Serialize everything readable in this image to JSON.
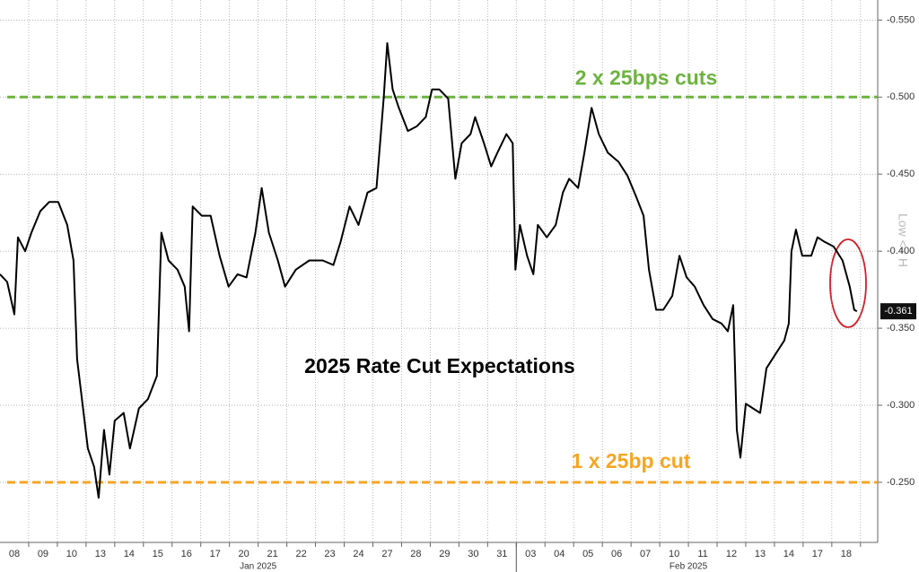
{
  "chart_data": {
    "type": "line",
    "title": "2025 Rate Cut Expectations",
    "axis_label": "Low <= H",
    "y_inverted": true,
    "ylim": [
      -0.563,
      -0.211
    ],
    "yticks": [
      {
        "value": -0.55,
        "label": "-0.550"
      },
      {
        "value": -0.5,
        "label": "-0.500"
      },
      {
        "value": -0.45,
        "label": "-0.450"
      },
      {
        "value": -0.4,
        "label": "-0.400"
      },
      {
        "value": -0.35,
        "label": "-0.350"
      },
      {
        "value": -0.3,
        "label": "-0.300"
      },
      {
        "value": -0.25,
        "label": "-0.250"
      }
    ],
    "xlim": [
      0,
      30.6
    ],
    "xticks": [
      {
        "value": 0.5,
        "label": "08"
      },
      {
        "value": 1.5,
        "label": "09"
      },
      {
        "value": 2.5,
        "label": "10"
      },
      {
        "value": 3.5,
        "label": "13"
      },
      {
        "value": 4.5,
        "label": "14"
      },
      {
        "value": 5.5,
        "label": "15"
      },
      {
        "value": 6.5,
        "label": "16"
      },
      {
        "value": 7.5,
        "label": "17"
      },
      {
        "value": 8.5,
        "label": "20"
      },
      {
        "value": 9.5,
        "label": "21"
      },
      {
        "value": 10.5,
        "label": "22"
      },
      {
        "value": 11.5,
        "label": "23"
      },
      {
        "value": 12.5,
        "label": "24"
      },
      {
        "value": 13.5,
        "label": "27"
      },
      {
        "value": 14.5,
        "label": "28"
      },
      {
        "value": 15.5,
        "label": "29"
      },
      {
        "value": 16.5,
        "label": "30"
      },
      {
        "value": 17.5,
        "label": "31"
      },
      {
        "value": 18.5,
        "label": "03"
      },
      {
        "value": 19.5,
        "label": "04"
      },
      {
        "value": 20.5,
        "label": "05"
      },
      {
        "value": 21.5,
        "label": "06"
      },
      {
        "value": 22.5,
        "label": "07"
      },
      {
        "value": 23.5,
        "label": "10"
      },
      {
        "value": 24.5,
        "label": "11"
      },
      {
        "value": 25.5,
        "label": "12"
      },
      {
        "value": 26.5,
        "label": "13"
      },
      {
        "value": 27.5,
        "label": "14"
      },
      {
        "value": 28.5,
        "label": "17"
      },
      {
        "value": 29.5,
        "label": "18"
      }
    ],
    "month_labels": [
      {
        "value": 9,
        "label": "Jan 2025"
      },
      {
        "value": 24,
        "label": "Feb 2025"
      }
    ],
    "month_breaks": [
      18
    ],
    "grid": true,
    "reference_lines": [
      {
        "value": -0.5,
        "label": "2 x 25bps cuts",
        "color": "#6db33f"
      },
      {
        "value": -0.25,
        "label": "1 x 25bp cut",
        "color": "#f5a623"
      }
    ],
    "last_value": {
      "value": -0.361,
      "label": "-0.361"
    },
    "series": [
      {
        "color": "#000000",
        "x": [
          0,
          0.25,
          0.5,
          0.625,
          0.875,
          1.094,
          1.406,
          1.719,
          2.031,
          2.344,
          2.563,
          2.688,
          2.875,
          3.063,
          3.281,
          3.438,
          3.625,
          3.813,
          4.0,
          4.313,
          4.531,
          4.844,
          5.156,
          5.469,
          5.625,
          5.875,
          6.188,
          6.438,
          6.594,
          6.719,
          7.031,
          7.344,
          7.656,
          7.969,
          8.281,
          8.594,
          8.906,
          9.125,
          9.375,
          9.688,
          9.938,
          10.313,
          10.781,
          11.25,
          11.625,
          11.875,
          12.188,
          12.5,
          12.813,
          13.125,
          13.375,
          13.5,
          13.688,
          13.906,
          14.219,
          14.531,
          14.844,
          15.063,
          15.313,
          15.625,
          15.875,
          16.094,
          16.406,
          16.563,
          16.875,
          17.125,
          17.344,
          17.656,
          17.875,
          17.969,
          18.125,
          18.375,
          18.594,
          18.75,
          19.063,
          19.375,
          19.625,
          19.844,
          20.156,
          20.375,
          20.625,
          20.875,
          21.188,
          21.563,
          21.875,
          22.188,
          22.438,
          22.625,
          22.875,
          23.125,
          23.438,
          23.688,
          23.938,
          24.219,
          24.531,
          24.844,
          25.156,
          25.375,
          25.563,
          25.688,
          25.813,
          26.0,
          26.25,
          26.5,
          26.719,
          27.031,
          27.344,
          27.5,
          27.594,
          27.75,
          27.969,
          28.281,
          28.5,
          28.75,
          29.063,
          29.375,
          29.625,
          29.781,
          29.875
        ],
        "values": [
          -0.385,
          -0.38,
          -0.359,
          -0.409,
          -0.4,
          -0.412,
          -0.426,
          -0.432,
          -0.432,
          -0.417,
          -0.394,
          -0.33,
          -0.301,
          -0.272,
          -0.26,
          -0.24,
          -0.284,
          -0.255,
          -0.29,
          -0.295,
          -0.272,
          -0.298,
          -0.304,
          -0.319,
          -0.412,
          -0.394,
          -0.388,
          -0.377,
          -0.348,
          -0.429,
          -0.423,
          -0.423,
          -0.397,
          -0.377,
          -0.385,
          -0.383,
          -0.412,
          -0.441,
          -0.412,
          -0.394,
          -0.377,
          -0.388,
          -0.394,
          -0.394,
          -0.391,
          -0.406,
          -0.429,
          -0.417,
          -0.438,
          -0.441,
          -0.499,
          -0.535,
          -0.505,
          -0.493,
          -0.478,
          -0.481,
          -0.487,
          -0.505,
          -0.505,
          -0.499,
          -0.447,
          -0.47,
          -0.476,
          -0.487,
          -0.47,
          -0.455,
          -0.464,
          -0.476,
          -0.47,
          -0.388,
          -0.417,
          -0.397,
          -0.385,
          -0.417,
          -0.409,
          -0.417,
          -0.438,
          -0.447,
          -0.441,
          -0.464,
          -0.493,
          -0.476,
          -0.464,
          -0.458,
          -0.449,
          -0.435,
          -0.423,
          -0.388,
          -0.362,
          -0.362,
          -0.371,
          -0.397,
          -0.383,
          -0.377,
          -0.365,
          -0.356,
          -0.353,
          -0.348,
          -0.365,
          -0.284,
          -0.266,
          -0.301,
          -0.298,
          -0.295,
          -0.324,
          -0.333,
          -0.342,
          -0.353,
          -0.4,
          -0.414,
          -0.397,
          -0.397,
          -0.409,
          -0.406,
          -0.403,
          -0.394,
          -0.377,
          -0.362,
          -0.361
        ]
      }
    ]
  }
}
